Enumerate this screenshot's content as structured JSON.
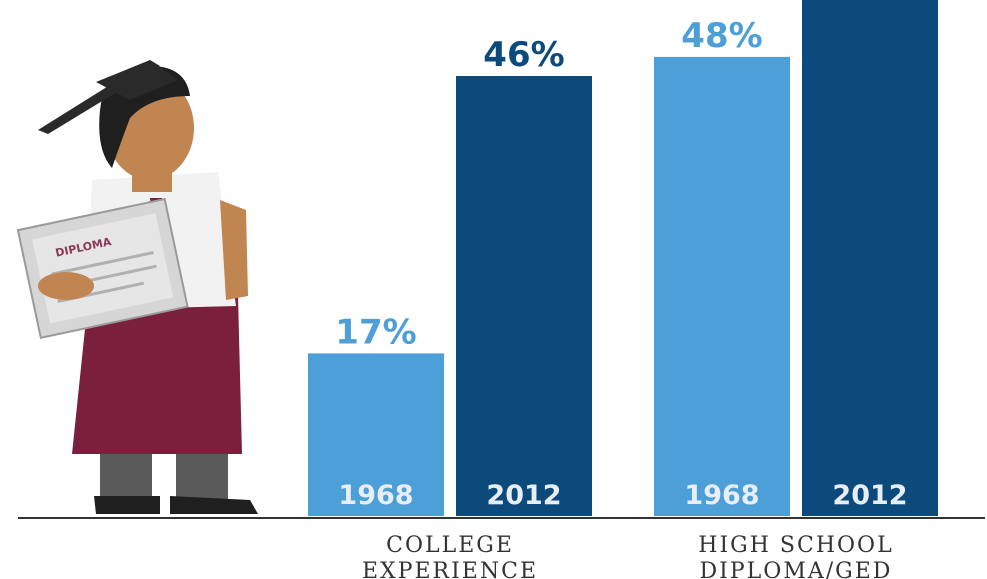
{
  "chart_data": {
    "type": "bar",
    "categories": [
      "COLLEGE EXPERIENCE",
      "HIGH SCHOOL DIPLOMA/GED"
    ],
    "category_lines": [
      [
        "COLLEGE",
        "EXPERIENCE"
      ],
      [
        "HIGH SCHOOL",
        "DIPLOMA/GED"
      ]
    ],
    "series": [
      {
        "name": "1968",
        "values": [
          17,
          48
        ],
        "value_labels": [
          "17%",
          "48%"
        ]
      },
      {
        "name": "2012",
        "values": [
          46,
          null
        ],
        "value_labels": [
          "46%",
          ""
        ]
      }
    ],
    "ylim": [
      0,
      46
    ],
    "grid": false,
    "colors": {
      "1968": "#4d9fd8",
      "2012": "#0d4a7c",
      "axis": "#333333"
    }
  },
  "illustration": {
    "icon": "graduate-with-diploma-icon",
    "diploma_text": "DIPLOMA",
    "colors": {
      "skin": "#c08550",
      "cap": "#2a2a2a",
      "shirt": "#f2f2f2",
      "skirt": "#7a1f3c",
      "diploma": "#d6d6d6"
    }
  }
}
